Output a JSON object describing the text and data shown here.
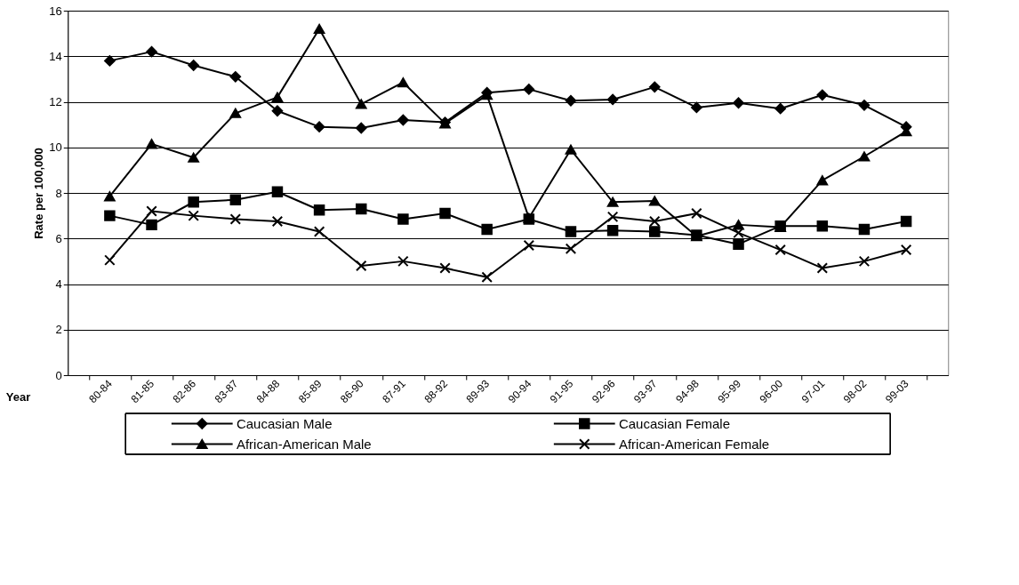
{
  "chart_data": {
    "type": "line",
    "ylabel": "Rate per 100,000",
    "xlabel": "Year",
    "categories": [
      "80-84",
      "81-85",
      "82-86",
      "83-87",
      "84-88",
      "85-89",
      "86-90",
      "87-91",
      "88-92",
      "89-93",
      "90-94",
      "91-95",
      "92-96",
      "93-97",
      "94-98",
      "95-99",
      "96-00",
      "97-01",
      "98-02",
      "99-03"
    ],
    "ylim": [
      0,
      16
    ],
    "yticks": [
      0,
      2,
      4,
      6,
      8,
      10,
      12,
      14,
      16
    ],
    "grid": "y",
    "legend": "bottom",
    "line_style": "solid",
    "series": [
      {
        "name": "Caucasian Male",
        "color": "#000000",
        "marker": "diamond",
        "values": [
          13.8,
          14.2,
          13.6,
          13.1,
          11.6,
          10.9,
          10.85,
          11.2,
          11.1,
          12.4,
          12.55,
          12.05,
          12.1,
          12.65,
          11.75,
          11.95,
          11.7,
          12.3,
          11.85,
          10.9
        ]
      },
      {
        "name": "Caucasian Female",
        "color": "#000000",
        "marker": "square",
        "values": [
          7.0,
          6.6,
          7.6,
          7.7,
          8.05,
          7.25,
          7.3,
          6.85,
          7.1,
          6.4,
          6.85,
          6.3,
          6.35,
          6.3,
          6.15,
          5.75,
          6.55,
          6.55,
          6.4,
          6.75
        ]
      },
      {
        "name": "African-American Male",
        "color": "#000000",
        "marker": "triangle",
        "values": [
          7.85,
          10.15,
          9.55,
          11.5,
          12.2,
          15.2,
          11.9,
          12.85,
          11.05,
          12.3,
          6.9,
          9.9,
          7.6,
          7.65,
          6.1,
          6.6,
          6.5,
          8.55,
          9.6,
          10.7
        ]
      },
      {
        "name": "African-American Female",
        "color": "#000000",
        "marker": "cross",
        "values": [
          5.05,
          7.2,
          7.0,
          6.85,
          6.75,
          6.3,
          4.8,
          5.0,
          4.7,
          4.3,
          5.7,
          5.55,
          6.95,
          6.75,
          7.1,
          6.25,
          5.5,
          4.7,
          5.0,
          5.5
        ]
      }
    ]
  }
}
